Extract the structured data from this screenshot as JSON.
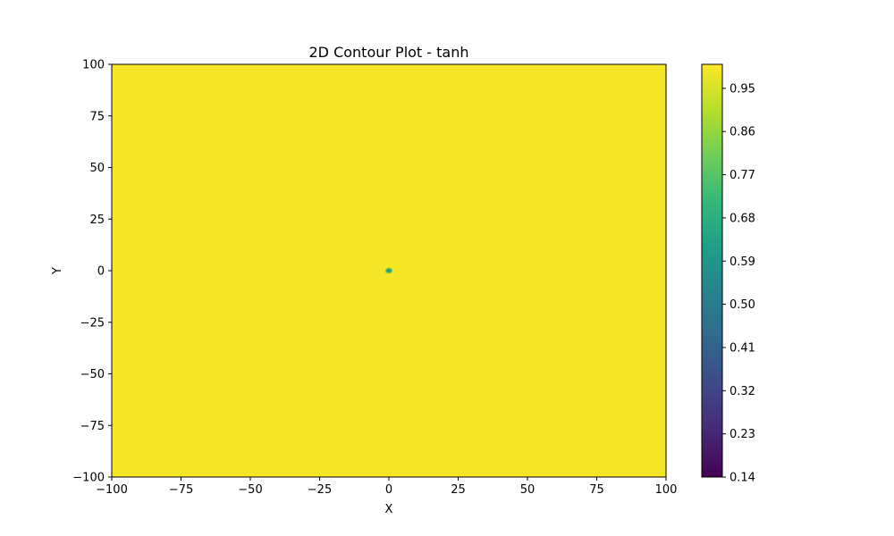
{
  "chart_data": {
    "type": "heatmap",
    "title": "2D Contour Plot - tanh",
    "xlabel": "X",
    "ylabel": "Y",
    "xlim": [
      -100,
      100
    ],
    "ylim": [
      -100,
      100
    ],
    "x_ticks": [
      -100,
      -75,
      -50,
      -25,
      0,
      25,
      50,
      75,
      100
    ],
    "y_ticks": [
      -100,
      -75,
      -50,
      -25,
      0,
      25,
      50,
      75,
      100
    ],
    "x_tick_labels": [
      "−100",
      "−75",
      "−50",
      "−25",
      "0",
      "25",
      "50",
      "75",
      "100"
    ],
    "y_tick_labels": [
      "−100",
      "−75",
      "−50",
      "−25",
      "0",
      "25",
      "50",
      "75",
      "100"
    ],
    "grid": false,
    "colormap": "viridis",
    "field": {
      "background_value": 0.99,
      "feature": {
        "x": 0,
        "y": 0,
        "center_value": 0.55,
        "description_values": [
          0.55,
          0.68,
          0.95
        ]
      }
    },
    "colorbar": {
      "min": 0.14,
      "max": 1.0,
      "ticks": [
        0.14,
        0.23,
        0.32,
        0.41,
        0.5,
        0.59,
        0.68,
        0.77,
        0.86,
        0.95
      ],
      "tick_labels": [
        "0.14",
        "0.23",
        "0.32",
        "0.41",
        "0.50",
        "0.59",
        "0.68",
        "0.77",
        "0.86",
        "0.95"
      ]
    }
  }
}
